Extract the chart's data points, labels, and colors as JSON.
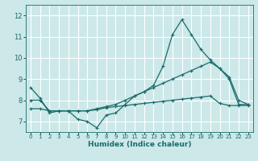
{
  "xlabel": "Humidex (Indice chaleur)",
  "bg_color": "#cce8e8",
  "grid_color": "#ffffff",
  "line_color": "#1a6b6b",
  "xlim": [
    -0.5,
    23.5
  ],
  "ylim": [
    6.5,
    12.5
  ],
  "xticks": [
    0,
    1,
    2,
    3,
    4,
    5,
    6,
    7,
    8,
    9,
    10,
    11,
    12,
    13,
    14,
    15,
    16,
    17,
    18,
    19,
    20,
    21,
    22,
    23
  ],
  "yticks": [
    7,
    8,
    9,
    10,
    11,
    12
  ],
  "line1_x": [
    0,
    1,
    2,
    3,
    4,
    5,
    6,
    7,
    8,
    9,
    10,
    11,
    12,
    13,
    14,
    15,
    16,
    17,
    18,
    19,
    20,
    21,
    22,
    23
  ],
  "line1_y": [
    8.6,
    8.1,
    7.4,
    7.5,
    7.5,
    7.1,
    7.0,
    6.7,
    7.3,
    7.4,
    7.8,
    8.2,
    8.4,
    8.7,
    9.6,
    11.1,
    11.8,
    11.1,
    10.4,
    9.9,
    9.5,
    9.0,
    7.8,
    7.8
  ],
  "line2_x": [
    0,
    1,
    2,
    3,
    4,
    5,
    6,
    7,
    8,
    9,
    10,
    11,
    12,
    13,
    14,
    15,
    16,
    17,
    18,
    19,
    20,
    21,
    22,
    23
  ],
  "line2_y": [
    8.0,
    8.0,
    7.5,
    7.5,
    7.5,
    7.5,
    7.5,
    7.6,
    7.7,
    7.8,
    8.0,
    8.2,
    8.4,
    8.6,
    8.8,
    9.0,
    9.2,
    9.4,
    9.6,
    9.8,
    9.5,
    9.1,
    8.0,
    7.8
  ],
  "line3_x": [
    0,
    1,
    2,
    3,
    4,
    5,
    6,
    7,
    8,
    9,
    10,
    11,
    12,
    13,
    14,
    15,
    16,
    17,
    18,
    19,
    20,
    21,
    22,
    23
  ],
  "line3_y": [
    7.6,
    7.6,
    7.5,
    7.5,
    7.5,
    7.5,
    7.5,
    7.55,
    7.65,
    7.7,
    7.75,
    7.8,
    7.85,
    7.9,
    7.95,
    8.0,
    8.05,
    8.1,
    8.15,
    8.2,
    7.85,
    7.75,
    7.75,
    7.75
  ]
}
